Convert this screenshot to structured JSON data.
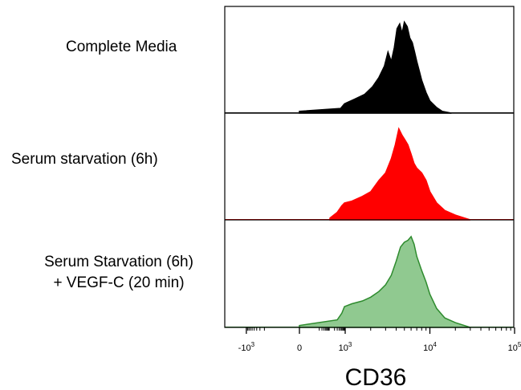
{
  "chart_data": {
    "type": "area",
    "xlabel": "CD36",
    "x_scale": "biexponential",
    "x_tick_labels": [
      "-10",
      "0",
      "10",
      "10",
      "10"
    ],
    "x_tick_superscripts": [
      "3",
      "",
      "3",
      "4",
      "5"
    ],
    "x_tick_values": [
      -1000,
      0,
      1000,
      10000,
      100000
    ],
    "grid": false,
    "legend": "none",
    "series": [
      {
        "name": "Complete Media",
        "color": "#000000",
        "fill": "#000000",
        "x": [
          0,
          500,
          900,
          1300,
          1700,
          2100,
          2500,
          2900,
          3200,
          3500,
          3800,
          4100,
          4400,
          4700,
          5000,
          5400,
          5800,
          6200,
          6600,
          7000,
          7500,
          8000,
          9000,
          10000,
          12000,
          14000,
          18000
        ],
        "y": [
          0.02,
          0.05,
          0.1,
          0.15,
          0.2,
          0.28,
          0.38,
          0.5,
          0.65,
          0.55,
          0.7,
          0.9,
          0.95,
          0.85,
          0.97,
          0.92,
          0.8,
          0.75,
          0.65,
          0.55,
          0.45,
          0.35,
          0.22,
          0.13,
          0.06,
          0.02,
          0
        ]
      },
      {
        "name": "Serum starvation  (6h)",
        "color": "#ff0000",
        "fill": "#ff0000",
        "x": [
          100,
          300,
          600,
          900,
          1200,
          1600,
          2000,
          2500,
          3000,
          3500,
          3900,
          4300,
          4700,
          5100,
          5500,
          6000,
          6500,
          7000,
          8000,
          9000,
          10000,
          12000,
          15000,
          20000,
          30000
        ],
        "y": [
          0.02,
          0.08,
          0.15,
          0.18,
          0.2,
          0.25,
          0.3,
          0.42,
          0.5,
          0.65,
          0.8,
          0.97,
          0.9,
          0.85,
          0.8,
          0.7,
          0.6,
          0.55,
          0.5,
          0.42,
          0.3,
          0.18,
          0.1,
          0.05,
          0
        ]
      },
      {
        "name": "Serum Starvation  (6h) + VEGF-C (20 min)",
        "color": "#2e8b2e",
        "fill": "#90c990",
        "x": [
          0,
          300,
          600,
          900,
          1200,
          1600,
          2000,
          2500,
          3000,
          3500,
          4000,
          4500,
          5000,
          5500,
          6000,
          6500,
          7000,
          8000,
          9000,
          10000,
          12000,
          15000,
          20000,
          30000
        ],
        "y": [
          0.02,
          0.08,
          0.15,
          0.22,
          0.25,
          0.28,
          0.32,
          0.38,
          0.45,
          0.55,
          0.7,
          0.85,
          0.9,
          0.92,
          0.96,
          0.88,
          0.75,
          0.6,
          0.48,
          0.35,
          0.2,
          0.1,
          0.05,
          0
        ]
      }
    ]
  },
  "labels": {
    "s1": "Complete Media",
    "s2": "Serum starvation  (6h)",
    "s3_line1": "Serum Starvation  (6h)",
    "s3_line2": "+ VEGF-C (20 min)"
  }
}
